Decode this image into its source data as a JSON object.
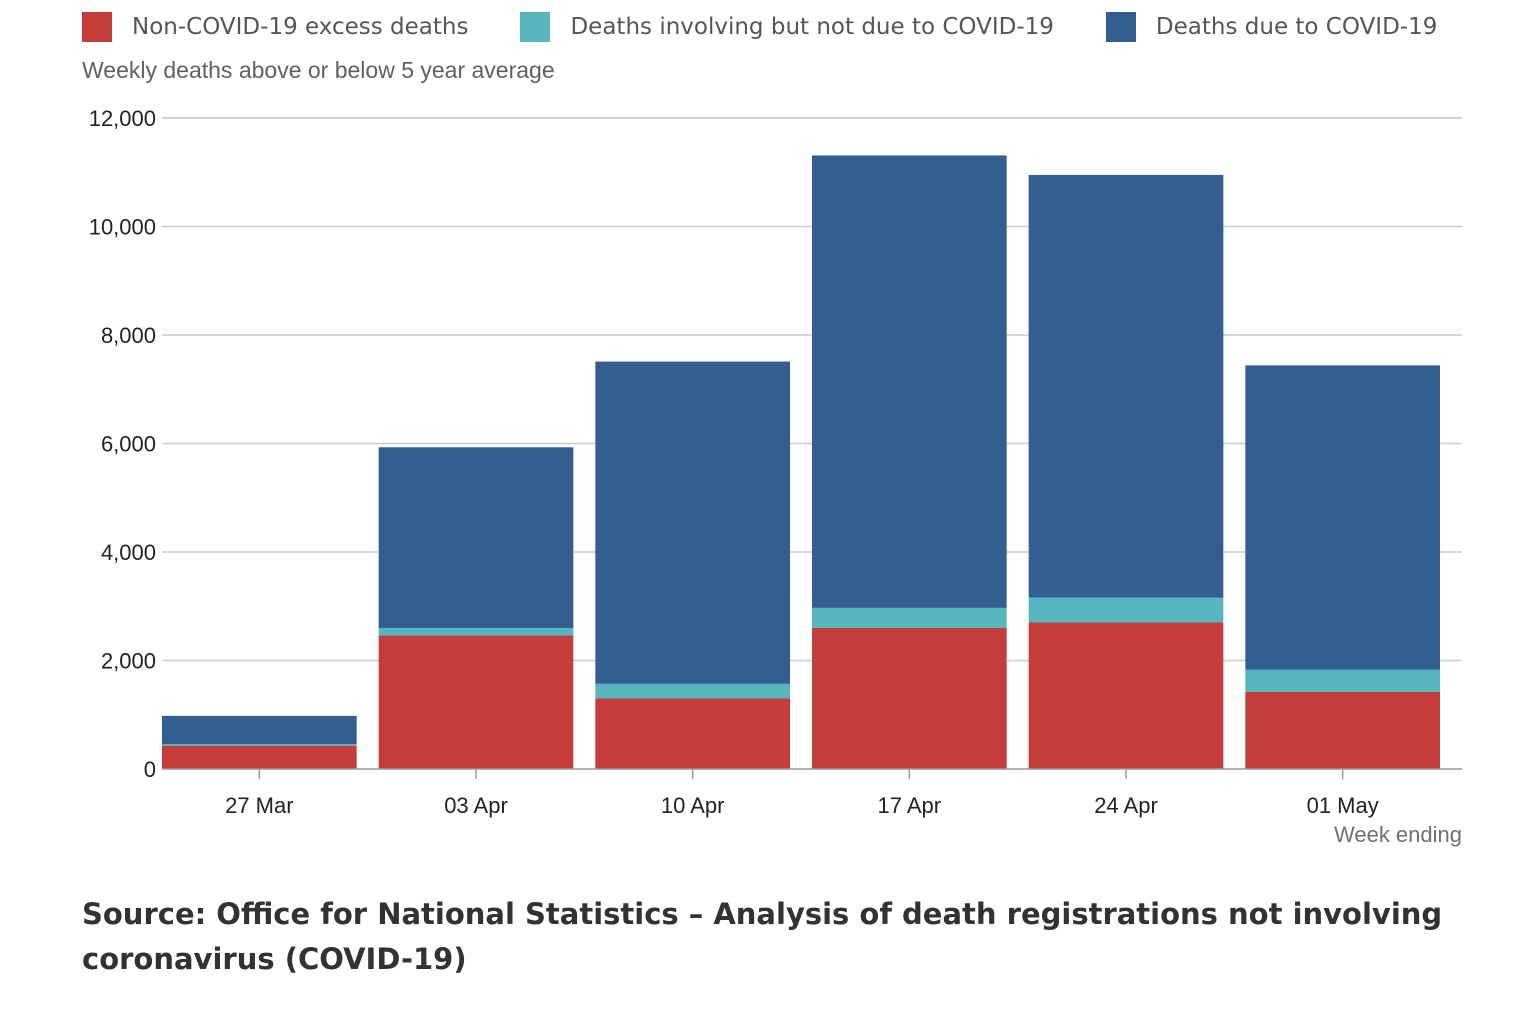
{
  "chart_data": {
    "type": "bar",
    "stacked": true,
    "categories": [
      "27 Mar",
      "03 Apr",
      "10 Apr",
      "17 Apr",
      "24 Apr",
      "01 May"
    ],
    "series": [
      {
        "name": "Non-COVID-19 excess deaths",
        "color": "#c43d3a",
        "values": [
          430,
          2460,
          1300,
          2600,
          2700,
          1420
        ]
      },
      {
        "name": "Deaths involving but not due to COVID-19",
        "color": "#57b5c0",
        "values": [
          30,
          140,
          270,
          370,
          460,
          410
        ]
      },
      {
        "name": "Deaths due to COVID-19",
        "color": "#325f90",
        "values": [
          520,
          3330,
          5940,
          8340,
          7790,
          5610
        ]
      }
    ],
    "ylabel": "Weekly deaths above or below 5 year average",
    "xlabel": "Week ending",
    "ylim": [
      0,
      12000
    ],
    "yticks": [
      0,
      2000,
      4000,
      6000,
      8000,
      10000,
      12000
    ],
    "ytick_labels": [
      "0",
      "2,000",
      "4,000",
      "6,000",
      "8,000",
      "10,000",
      "12,000"
    ],
    "grid": true,
    "legend_position": "top"
  },
  "source": "Source: Office for National Statistics – Analysis of death registrations not involving coronavirus (COVID-19)"
}
